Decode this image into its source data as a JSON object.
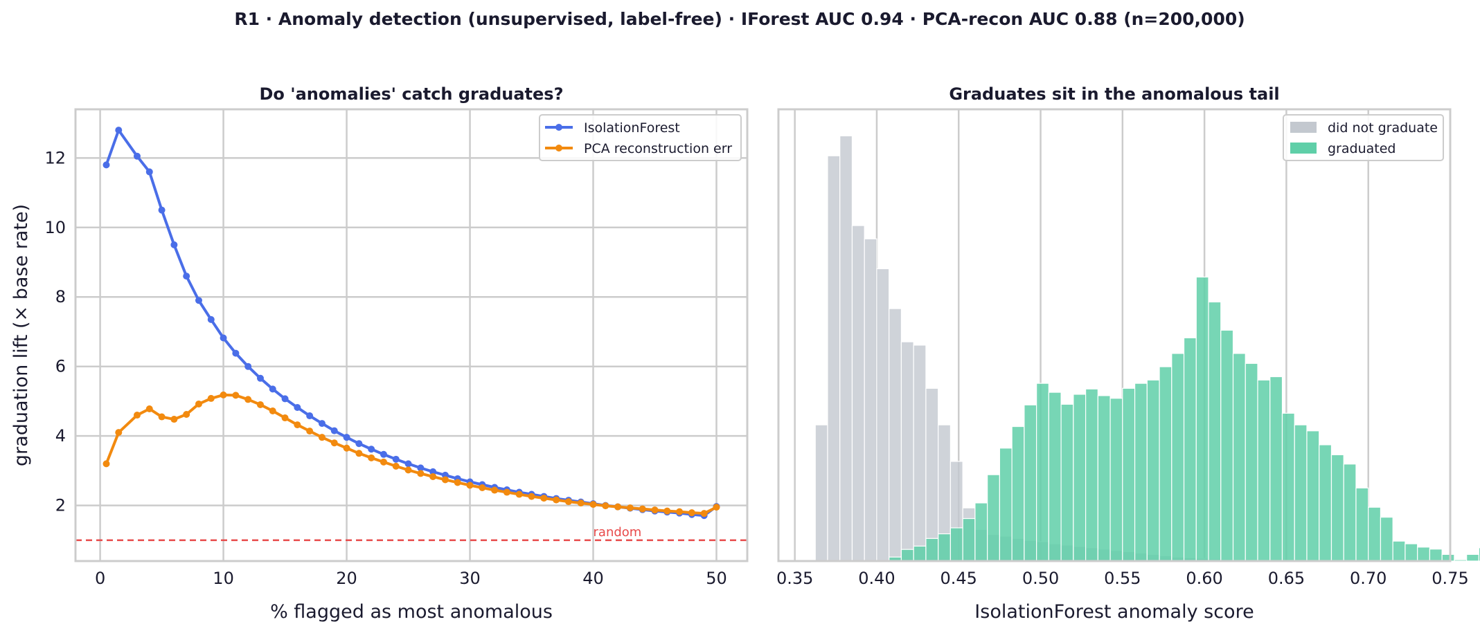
{
  "figure": {
    "suptitle": "R1 · Anomaly detection (unsupervised, label-free)  ·  IForest AUC 0.94 · PCA-recon AUC 0.88  (n=200,000)"
  },
  "chart_data": [
    {
      "type": "line",
      "title": "Do 'anomalies' catch graduates?",
      "xlabel": "% flagged as most anomalous",
      "ylabel": "graduation lift (× base rate)",
      "xlim": [
        -2,
        52.5
      ],
      "ylim": [
        0.4,
        13.4
      ],
      "xticks": [
        0,
        10,
        20,
        30,
        40,
        50
      ],
      "yticks": [
        2,
        4,
        6,
        8,
        10,
        12
      ],
      "grid": true,
      "legend": "top-right",
      "x": [
        0.5,
        1.5,
        3,
        4,
        5,
        6,
        7,
        8,
        9,
        10,
        11,
        12,
        13,
        14,
        15,
        16,
        17,
        18,
        19,
        20,
        21,
        22,
        23,
        24,
        25,
        26,
        27,
        28,
        29,
        30,
        31,
        32,
        33,
        34,
        35,
        36,
        37,
        38,
        39,
        40,
        41,
        42,
        43,
        44,
        45,
        46,
        47,
        48,
        49,
        50
      ],
      "series": [
        {
          "name": "IsolationForest",
          "color": "#4a6ee8",
          "values": [
            11.8,
            12.8,
            12.05,
            11.6,
            10.5,
            9.5,
            8.6,
            7.9,
            7.35,
            6.82,
            6.38,
            6.0,
            5.66,
            5.35,
            5.07,
            4.82,
            4.58,
            4.36,
            4.15,
            3.96,
            3.78,
            3.62,
            3.47,
            3.33,
            3.2,
            3.08,
            2.97,
            2.87,
            2.77,
            2.68,
            2.6,
            2.52,
            2.45,
            2.38,
            2.32,
            2.26,
            2.2,
            2.15,
            2.1,
            2.05,
            2.0,
            1.96,
            1.92,
            1.88,
            1.84,
            1.81,
            1.78,
            1.74,
            1.71,
            1.97
          ]
        },
        {
          "name": "PCA reconstruction err",
          "color": "#f28a0f",
          "values": [
            3.2,
            4.1,
            4.6,
            4.78,
            4.55,
            4.48,
            4.62,
            4.92,
            5.08,
            5.18,
            5.17,
            5.05,
            4.9,
            4.72,
            4.52,
            4.32,
            4.14,
            3.96,
            3.8,
            3.65,
            3.5,
            3.37,
            3.25,
            3.13,
            3.02,
            2.92,
            2.83,
            2.74,
            2.66,
            2.58,
            2.51,
            2.44,
            2.38,
            2.32,
            2.26,
            2.21,
            2.16,
            2.11,
            2.07,
            2.03,
            1.99,
            1.96,
            1.93,
            1.9,
            1.87,
            1.84,
            1.82,
            1.79,
            1.77,
            1.95
          ]
        }
      ],
      "reference_line": {
        "y": 1.0,
        "label": "random",
        "color": "#e84a4a"
      }
    },
    {
      "type": "histogram",
      "title": "Graduates sit in the anomalous tail",
      "xlabel": "IsolationForest anomaly score",
      "xlim": [
        0.34,
        0.75
      ],
      "xticks": [
        "0.35",
        "0.40",
        "0.45",
        "0.50",
        "0.55",
        "0.60",
        "0.65",
        "0.70",
        "0.75"
      ],
      "grid": true,
      "legend": "top-right",
      "bin_width": 0.0075,
      "series": [
        {
          "name": "did not graduate",
          "color": "#c3c8cf",
          "bin_start": 0.3625,
          "values": [
            4.1,
            12.2,
            12.8,
            10.1,
            9.7,
            8.8,
            7.6,
            6.6,
            6.5,
            5.2,
            4.1,
            3.0,
            1.6,
            0.95,
            0.8,
            0.75,
            0.68,
            0.62,
            0.58,
            0.52,
            0.48,
            0.44,
            0.4,
            0.36,
            0.32,
            0.28,
            0.24,
            0.2,
            0.16,
            0.12,
            0.1,
            0.08,
            0.06,
            0.05,
            0.04,
            0.03,
            0.02,
            0.015,
            0.01,
            0.01
          ]
        },
        {
          "name": "graduated",
          "color": "#5fcfa8",
          "bin_start": 0.4075,
          "values": [
            0.12,
            0.35,
            0.45,
            0.68,
            0.82,
            1.0,
            1.28,
            1.75,
            2.6,
            3.4,
            4.05,
            4.7,
            5.35,
            5.08,
            4.72,
            5.02,
            5.18,
            4.98,
            4.9,
            5.2,
            5.35,
            5.45,
            5.85,
            6.25,
            6.72,
            8.55,
            7.8,
            6.95,
            6.25,
            5.95,
            5.45,
            5.55,
            4.45,
            4.1,
            3.92,
            3.5,
            3.2,
            2.92,
            2.2,
            1.62,
            1.32,
            0.6,
            0.52,
            0.42,
            0.36,
            0.2,
            0.04,
            0.2,
            0.4,
            0.04,
            0.1
          ]
        }
      ],
      "ylim": [
        0,
        13.6
      ]
    }
  ]
}
